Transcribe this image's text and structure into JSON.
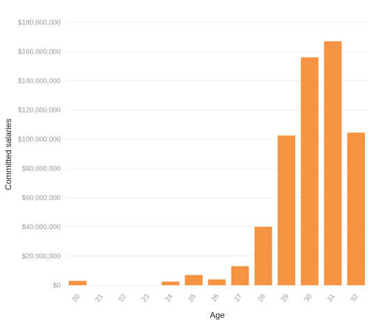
{
  "chart_data": {
    "type": "bar",
    "xlabel": "Age",
    "ylabel": "Committed salaries",
    "categories": [
      "20",
      "21",
      "22",
      "23",
      "24",
      "25",
      "26",
      "27",
      "28",
      "29",
      "30",
      "31",
      "32"
    ],
    "values": [
      3000000,
      0,
      0,
      0,
      2500000,
      7000000,
      4000000,
      13000000,
      40000000,
      102500000,
      156000000,
      167000000,
      104500000
    ],
    "ylim": [
      0,
      180000000
    ],
    "yticks": [
      {
        "value": 0,
        "label": "$0"
      },
      {
        "value": 20000000,
        "label": "$20,000,000"
      },
      {
        "value": 40000000,
        "label": "$40,000,000"
      },
      {
        "value": 60000000,
        "label": "$60,000,000"
      },
      {
        "value": 80000000,
        "label": "$80,000,000"
      },
      {
        "value": 100000000,
        "label": "$100,000,000"
      },
      {
        "value": 120000000,
        "label": "$120,000,000"
      },
      {
        "value": 140000000,
        "label": "$140,000,000"
      },
      {
        "value": 160000000,
        "label": "$160,000,000"
      },
      {
        "value": 180000000,
        "label": "$180,000,000"
      }
    ],
    "grid": true,
    "legend": "none",
    "colors": {
      "bar": "#f59340",
      "grid": "#ececec",
      "tick_text": "#9a9a9a",
      "axis_title": "#222222"
    }
  }
}
